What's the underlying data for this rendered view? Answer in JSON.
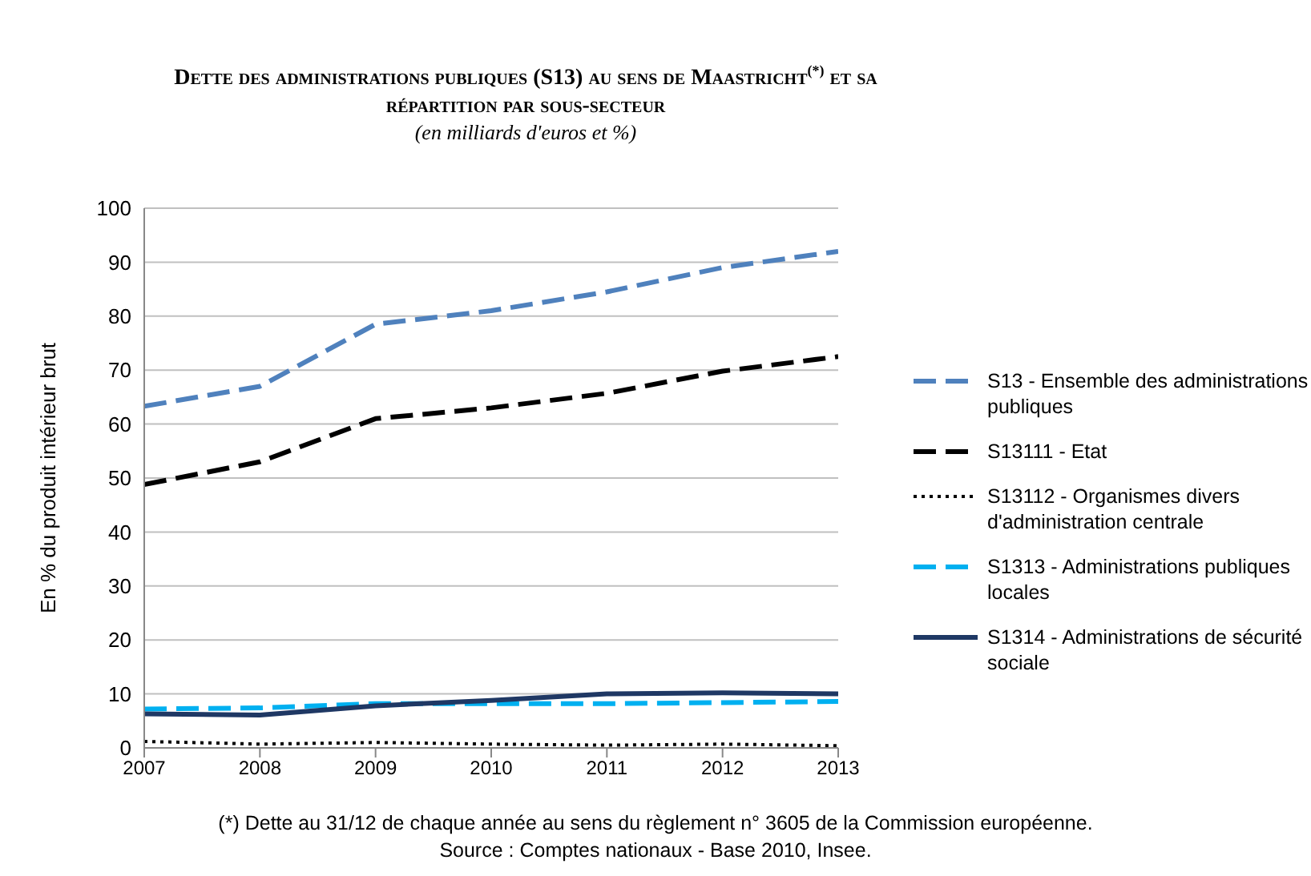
{
  "chart_data": {
    "type": "line",
    "title": "Dette des administrations publiques (S13) au sens de Maastricht$^{(*)}$ et sa répartition par sous-secteur",
    "subtitle": "(en milliards d'euros et %)",
    "ylabel": "En % du produit intérieur brut",
    "x": [
      2007,
      2008,
      2009,
      2010,
      2011,
      2012,
      2013
    ],
    "xlim": [
      2007,
      2013
    ],
    "xticks": [
      2007,
      2008,
      2009,
      2010,
      2011,
      2012,
      2013
    ],
    "ylim": [
      0,
      100
    ],
    "yticks": [
      0,
      10,
      20,
      30,
      40,
      50,
      60,
      70,
      80,
      90,
      100
    ],
    "grid": "y",
    "legend": "right",
    "marker": "none",
    "series": [
      {
        "name": "S13 - Ensemble des administrations publiques",
        "color": "#4f81bd",
        "line_style": "dashed",
        "values": [
          63.3,
          67,
          78.5,
          81,
          84.5,
          89,
          92
        ]
      },
      {
        "name": "S13111 - Etat",
        "color": "#000000",
        "line_style": "dashed",
        "values": [
          48.8,
          53,
          61,
          63,
          65.7,
          69.8,
          72.5
        ]
      },
      {
        "name": "S13112 - Organismes divers d'administration centrale",
        "color": "#000000",
        "line_style": "dotted",
        "values": [
          1.2,
          0.7,
          1,
          0.7,
          0.5,
          0.7,
          0.4
        ]
      },
      {
        "name": "S1313 - Administrations publiques locales",
        "color": "#00b0f0",
        "line_style": "dashed",
        "values": [
          7.2,
          7.4,
          8.2,
          8.2,
          8.2,
          8.4,
          8.6
        ]
      },
      {
        "name": "S1314 - Administrations de sécurité sociale",
        "color": "#1f3864",
        "line_style": "solid",
        "values": [
          6.3,
          6.1,
          7.8,
          8.8,
          10,
          10.2,
          10
        ]
      }
    ],
    "annotations": [
      "(*) Dette au 31/12 de chaque année au sens du règlement n° 3605 de la Commission européenne.",
      "Source : Comptes nationaux - Base 2010, Insee."
    ]
  }
}
